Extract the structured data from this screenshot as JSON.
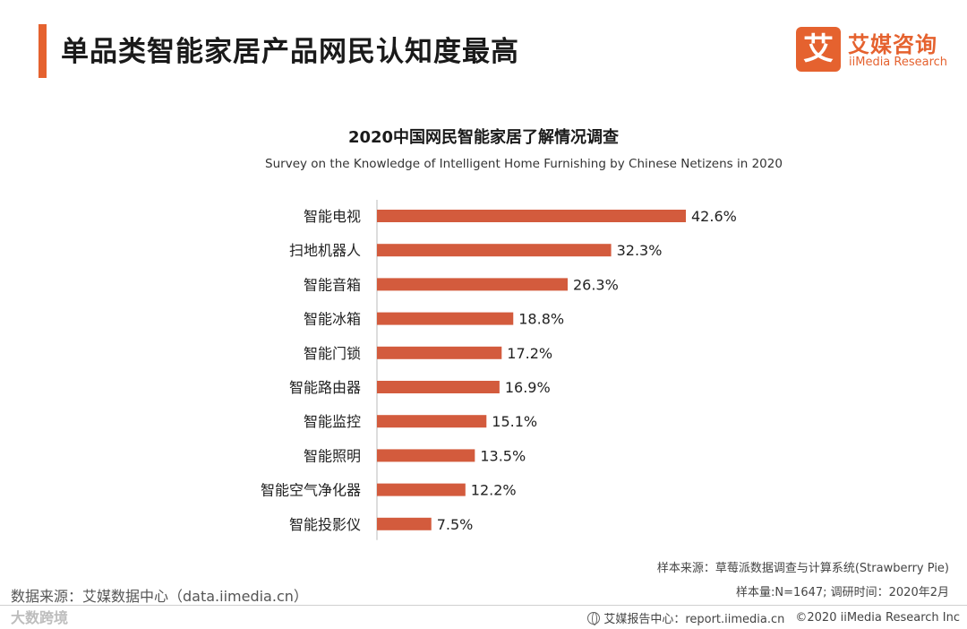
{
  "header": {
    "title": "单品类智能家居产品网民认知度最高"
  },
  "logo": {
    "mark": "艾",
    "name_cn": "艾媒咨询",
    "name_en": "iiMedia Research"
  },
  "chart_data": {
    "type": "bar",
    "orientation": "horizontal",
    "title": "2020中国网民智能家居了解情况调查",
    "subtitle": "Survey on the Knowledge of  Intelligent Home Furnishing by Chinese Netizens in 2020",
    "categories": [
      "智能电视",
      "扫地机器人",
      "智能音箱",
      "智能冰箱",
      "智能门锁",
      "智能路由器",
      "智能监控",
      "智能照明",
      "智能空气净化器",
      "智能投影仪"
    ],
    "values": [
      42.6,
      32.3,
      26.3,
      18.8,
      17.2,
      16.9,
      15.1,
      13.5,
      12.2,
      7.5
    ],
    "value_labels": [
      "42.6%",
      "32.3%",
      "26.3%",
      "18.8%",
      "17.2%",
      "16.9%",
      "15.1%",
      "13.5%",
      "12.2%",
      "7.5%"
    ],
    "unit": "%",
    "xlim": [
      0,
      42.6
    ],
    "bar_color": "#d35b3d",
    "xlabel": "",
    "ylabel": ""
  },
  "notes": {
    "sample_source": "样本来源：草莓派数据调查与计算系统(Strawberry  Pie)",
    "sample_size": "样本量:N=1647; 调研时间：2020年2月"
  },
  "data_source": "数据来源：艾媒数据中心（data.iimedia.cn）",
  "watermark": "大数跨境",
  "footer": {
    "center": "艾媒报告中心：report.iimedia.cn",
    "copyright": "©2020  iiMedia Research  Inc"
  },
  "colors": {
    "accent": "#e5622f",
    "bar": "#d35b3d"
  }
}
